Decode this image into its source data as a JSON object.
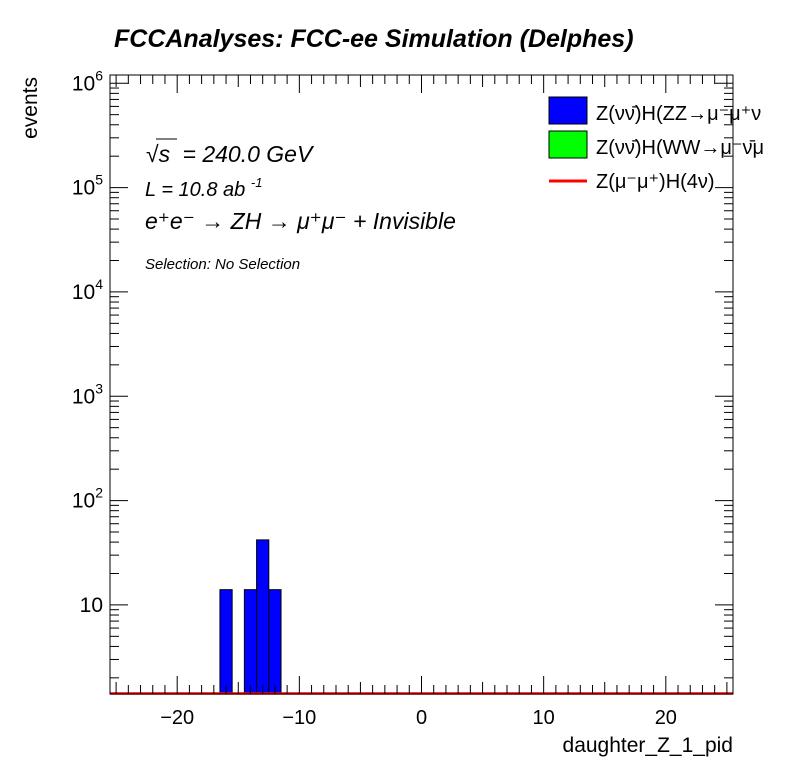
{
  "page": {
    "title": "FCCAnalyses: FCC-ee Simulation (Delphes)"
  },
  "annotations": {
    "sqrt_s_symbol": "√s",
    "energy": "= 240.0 GeV",
    "luminosity_main": "L = 10.8 ab",
    "luminosity_exp": "-1",
    "process": "e⁺e⁻ → ZH → μ⁺μ⁻ + Invisible",
    "selection": "Selection: No Selection"
  },
  "legend": [
    {
      "label": "Z(νν̄)H(ZZ→μ⁻μ⁺ν",
      "color": "#0000ff",
      "kind": "box"
    },
    {
      "label": "Z(νν̄)H(WW→μ⁻ν̄μ",
      "color": "#00ff00",
      "kind": "box"
    },
    {
      "label": "Z(μ⁻μ⁺)H(4ν)",
      "color": "#ff0000",
      "kind": "line"
    }
  ],
  "chart_data": {
    "type": "bar",
    "title": "FCCAnalyses: FCC-ee Simulation (Delphes)",
    "xlabel": "daughter_Z_1_pid",
    "ylabel": "events",
    "xlim": [
      -25.5,
      25.5
    ],
    "ylim": [
      1.4,
      1200000
    ],
    "yscale": "log",
    "x_ticks": [
      -20,
      -10,
      0,
      10,
      20
    ],
    "x_tick_labels": [
      "−20",
      "−10",
      "0",
      "10",
      "20"
    ],
    "y_ticks": [
      10,
      100,
      1000,
      10000,
      100000,
      1000000
    ],
    "y_tick_labels": [
      {
        "base": "10",
        "exp": ""
      },
      {
        "base": "10",
        "exp": "2"
      },
      {
        "base": "10",
        "exp": "3"
      },
      {
        "base": "10",
        "exp": "4"
      },
      {
        "base": "10",
        "exp": "5"
      },
      {
        "base": "10",
        "exp": "6"
      }
    ],
    "grid": false,
    "series": [
      {
        "name": "Z(νν̄)H(ZZ→μ⁻μ⁺ν",
        "color": "#0000ff",
        "bins": [
          {
            "x0": -16.5,
            "x1": -15.5,
            "value": 14
          },
          {
            "x0": -14.5,
            "x1": -13.5,
            "value": 14
          },
          {
            "x0": -13.5,
            "x1": -12.5,
            "value": 42
          },
          {
            "x0": -12.5,
            "x1": -11.5,
            "value": 14
          }
        ]
      },
      {
        "name": "Z(νν̄)H(WW→μ⁻ν̄μ",
        "color": "#00ff00",
        "bins": []
      },
      {
        "name": "Z(μ⁻μ⁺)H(4ν)",
        "color": "#ff0000",
        "line_value": 1.4
      }
    ]
  }
}
